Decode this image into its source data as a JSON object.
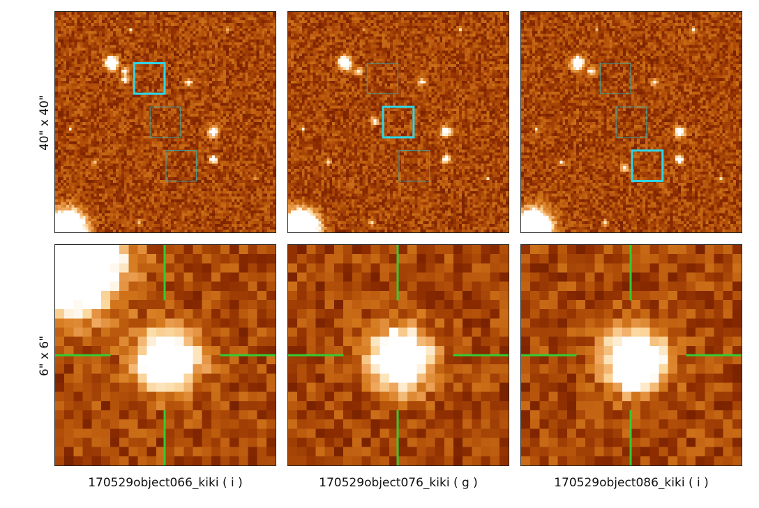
{
  "rows": [
    {
      "label": "40\" x 40\""
    },
    {
      "label": "6\" x 6\""
    }
  ],
  "columns": [
    {
      "caption": "170529object066_kiki ( i )",
      "highlighted_box": 0
    },
    {
      "caption": "170529object076_kiki ( g )",
      "highlighted_box": 1
    },
    {
      "caption": "170529object086_kiki ( i )",
      "highlighted_box": 2
    }
  ],
  "colors": {
    "background_colormap": [
      "#5a1200",
      "#8c2c00",
      "#b5520a",
      "#d57a1e",
      "#eea45a",
      "#fbd9a0",
      "#ffffff"
    ],
    "highlight_box": "#2ed6e6",
    "dim_box": "#3aa8a8",
    "crosshair": "#33cc33"
  }
}
